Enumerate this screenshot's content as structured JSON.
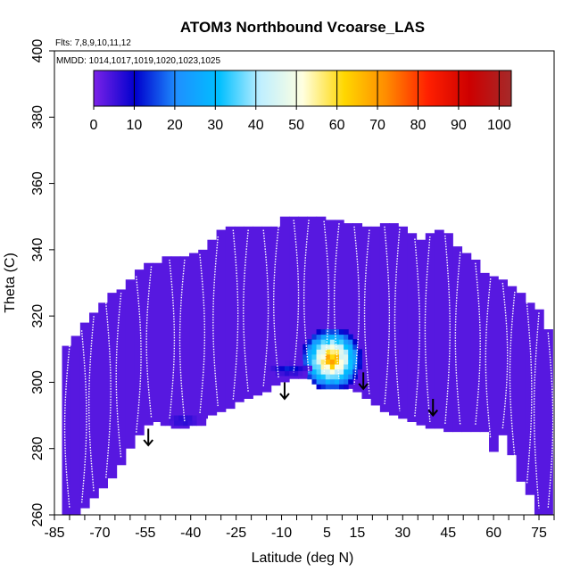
{
  "chart_data": {
    "type": "heatmap",
    "title": "ATOM3 Northbound Vcoarse_LAS",
    "flights_note": "Flts: 7,8,9,10,11,12",
    "dates_note": "MMDD: 1014,1017,1019,1020,1023,1025",
    "xlabel": "Latitude (deg N)",
    "ylabel": "Theta (C)",
    "xlim": [
      -85,
      80
    ],
    "ylim": [
      260,
      400
    ],
    "x_ticks": [
      "-85",
      "-70",
      "-55",
      "-40",
      "-25",
      "-10",
      "5",
      "15",
      "30",
      "45",
      "60",
      "75"
    ],
    "y_ticks": [
      "260",
      "280",
      "300",
      "320",
      "340",
      "360",
      "380",
      "400"
    ],
    "colorbar": {
      "range": [
        0,
        103
      ],
      "ticks": [
        "0",
        "10",
        "20",
        "30",
        "40",
        "50",
        "60",
        "70",
        "80",
        "90",
        "100"
      ],
      "colors": [
        "#7B22E8",
        "#0000CD",
        "#1E90FF",
        "#00BFFF",
        "#BFEFFF",
        "#FFFFE0",
        "#FFD700",
        "#FF8C00",
        "#FF2000",
        "#CD0000",
        "#A52A2A"
      ]
    },
    "background_value": 3,
    "data_extent": {
      "lat": [
        -81,
        -78,
        -75,
        -72,
        -69,
        -66,
        -63,
        -60,
        -57,
        -54,
        -51,
        -48,
        -45,
        -42,
        -39,
        -36,
        -33,
        -30,
        -27,
        -24,
        -21,
        -18,
        -15,
        -12,
        -9,
        -6,
        -3,
        0,
        3,
        6,
        9,
        12,
        15,
        18,
        21,
        24,
        27,
        30,
        33,
        36,
        39,
        42,
        45,
        48,
        51,
        54,
        57,
        60,
        63,
        66,
        69,
        72,
        75,
        78
      ],
      "theta_top": [
        311,
        314,
        318,
        321,
        324,
        327,
        328,
        331,
        334,
        336,
        336,
        338,
        338,
        338,
        339,
        340,
        343,
        346,
        347,
        347,
        347,
        347,
        347,
        347,
        350,
        350,
        350,
        350,
        350,
        349,
        349,
        348,
        348,
        347,
        347,
        348,
        348,
        347,
        345,
        343,
        345,
        346,
        345,
        341,
        339,
        337,
        333,
        332,
        331,
        329,
        327,
        324,
        322,
        316
      ],
      "theta_bottom": [
        260,
        260,
        262,
        265,
        268,
        271,
        275,
        280,
        284,
        287,
        288,
        287,
        286,
        286,
        287,
        289,
        290,
        291,
        292,
        294,
        295,
        296,
        297,
        299,
        300,
        301,
        301,
        301,
        301,
        300,
        299,
        298,
        297,
        295,
        293,
        291,
        290,
        289,
        288,
        287,
        286,
        286,
        285,
        285,
        285,
        285,
        285,
        279,
        284,
        278,
        270,
        266,
        260,
        260
      ]
    },
    "enhancements": [
      {
        "lat_range": [
          -3,
          16
        ],
        "theta_range": [
          298,
          316
        ],
        "value_max": 80
      },
      {
        "lat_range": [
          -50,
          -35
        ],
        "theta_range": [
          287,
          290
        ],
        "value_max": 12
      },
      {
        "lat_range": [
          -15,
          0
        ],
        "theta_range": [
          302,
          306
        ],
        "value_max": 15
      }
    ],
    "flight_track_latitudes": [
      -80,
      -76,
      -72,
      -68,
      -63,
      -58,
      -53,
      -47,
      -42,
      -37,
      -31,
      -26,
      -21,
      -16,
      -11,
      -6,
      -1,
      4,
      9,
      14,
      19,
      24,
      29,
      34,
      39,
      44,
      49,
      54,
      59,
      63,
      67,
      71,
      75,
      78
    ],
    "arrow_markers": [
      {
        "lat": -54,
        "theta_top": 286,
        "theta_bottom": 281
      },
      {
        "lat": -9,
        "theta_top": 300,
        "theta_bottom": 295
      },
      {
        "lat": 17,
        "theta_top": 303,
        "theta_bottom": 298
      },
      {
        "lat": 40,
        "theta_top": 295,
        "theta_bottom": 290
      }
    ]
  }
}
